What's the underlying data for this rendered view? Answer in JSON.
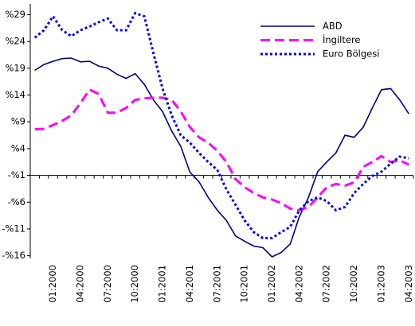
{
  "chart_data": {
    "type": "line",
    "categories": [
      null,
      null,
      "01:2000",
      null,
      null,
      "04:2000",
      null,
      null,
      "07:2000",
      null,
      null,
      "10:2000",
      null,
      null,
      "01:2001",
      null,
      null,
      "04:2001",
      null,
      null,
      "07:2001",
      null,
      null,
      "10:2001",
      null,
      null,
      "01:2002",
      null,
      null,
      "04:2002",
      null,
      null,
      "07:2002",
      null,
      null,
      "10:2002",
      null,
      null,
      "01:2003",
      null,
      null,
      "04:2003"
    ],
    "series": [
      {
        "name": "ABD",
        "color": "#000080",
        "style": "solid",
        "values": [
          18.6,
          19.7,
          20.3,
          20.8,
          20.9,
          20.2,
          20.3,
          19.4,
          19.0,
          17.9,
          17.1,
          18.0,
          16.0,
          13.1,
          10.9,
          7.3,
          4.4,
          -0.4,
          -2.2,
          -5.1,
          -7.5,
          -9.4,
          -12.3,
          -13.3,
          -14.2,
          -14.5,
          -16.2,
          -15.4,
          -13.8,
          -8.7,
          -5.1,
          -0.3,
          1.5,
          3.2,
          6.5,
          6.1,
          8.0,
          11.6,
          15.0,
          15.2,
          13.1,
          10.5
        ]
      },
      {
        "name": "İngiltere",
        "color": "#ff00ff",
        "style": "dashed",
        "values": [
          7.6,
          7.7,
          8.4,
          9.2,
          10.2,
          12.5,
          15.0,
          14.2,
          10.7,
          10.7,
          11.6,
          13.1,
          13.4,
          13.5,
          13.5,
          13.1,
          10.9,
          8.0,
          6.1,
          5.1,
          3.6,
          1.5,
          -1.7,
          -3.2,
          -4.3,
          -5.1,
          -5.5,
          -6.2,
          -7.2,
          -7.5,
          -6.9,
          -5.1,
          -3.2,
          -2.6,
          -2.9,
          -2.3,
          0.6,
          1.5,
          2.6,
          1.5,
          1.8,
          1.0
        ]
      },
      {
        "name": "Euro Bölgesi",
        "color": "#0000ff",
        "style": "dotted",
        "values": [
          24.7,
          26.1,
          28.7,
          26.1,
          25.0,
          26.1,
          26.8,
          27.6,
          28.3,
          26.1,
          26.1,
          29.3,
          28.7,
          21.8,
          15.2,
          10.2,
          6.5,
          5.1,
          3.2,
          1.5,
          0.0,
          -3.6,
          -6.5,
          -9.4,
          -11.6,
          -12.7,
          -12.7,
          -11.6,
          -10.6,
          -7.5,
          -5.8,
          -5.1,
          -5.8,
          -7.5,
          -6.9,
          -4.3,
          -2.6,
          -1.1,
          -0.3,
          1.2,
          2.5,
          2.2
        ]
      }
    ],
    "ylim": [
      -16.5,
      31
    ],
    "yticks": [
      {
        "value": 29,
        "label": "%29"
      },
      {
        "value": 24,
        "label": "%24"
      },
      {
        "value": 19,
        "label": "%19"
      },
      {
        "value": 14,
        "label": "%14"
      },
      {
        "value": 9,
        "label": "%9"
      },
      {
        "value": 4,
        "label": "%4"
      },
      {
        "value": -1,
        "label": "-%1"
      },
      {
        "value": -6,
        "label": "-%6"
      },
      {
        "value": -11,
        "label": "-%11"
      },
      {
        "value": -16,
        "label": "-%16"
      }
    ],
    "x_axis_crosses": -1,
    "grid": false,
    "legend": "upper right"
  }
}
